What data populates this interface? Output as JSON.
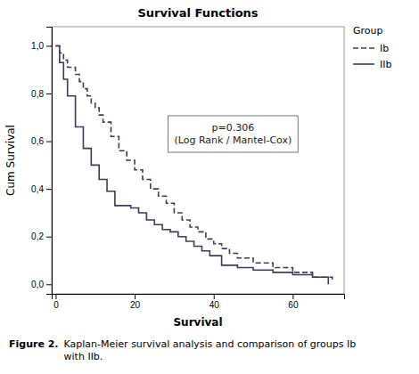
{
  "chart_data": {
    "type": "step",
    "title": "Survival Functions",
    "x_label": "Survival",
    "y_label": "Cum Survival",
    "legend_title": "Group",
    "legend": "right",
    "grid": false,
    "annotations": [
      {
        "text": "p=0.306\n(Log Rank / Mantel-Cox)"
      }
    ],
    "caption": [
      "Figure 2.",
      "Kaplan-Meier survival analysis and comparison of groups Ib\nwith IIb."
    ],
    "xlim": [
      -1,
      73
    ],
    "ylim": [
      -0.04,
      1.08
    ],
    "xticks": [
      0,
      20,
      40,
      60
    ],
    "yticks": [
      {
        "value": 0.0,
        "label": "0,0"
      },
      {
        "value": 0.2,
        "label": "0,2"
      },
      {
        "value": 0.4,
        "label": "0,4"
      },
      {
        "value": 0.6,
        "label": "0,6"
      },
      {
        "value": 0.8,
        "label": "0,8"
      },
      {
        "value": 1.0,
        "label": "1,0"
      }
    ],
    "series": [
      {
        "name": "Ib",
        "color": "#3c3c5a",
        "line_style": "dashed",
        "x": [
          0,
          1,
          2,
          3,
          4,
          5,
          6,
          7,
          8,
          9,
          10,
          11,
          12,
          14,
          16,
          18,
          20,
          22,
          24,
          26,
          28,
          30,
          32,
          34,
          36,
          38,
          40,
          42,
          44,
          46,
          50,
          55,
          60,
          65,
          70
        ],
        "values": [
          1.0,
          0.97,
          0.94,
          0.91,
          0.91,
          0.88,
          0.85,
          0.82,
          0.79,
          0.76,
          0.74,
          0.71,
          0.68,
          0.62,
          0.56,
          0.52,
          0.48,
          0.44,
          0.4,
          0.37,
          0.34,
          0.3,
          0.27,
          0.24,
          0.22,
          0.19,
          0.17,
          0.15,
          0.13,
          0.11,
          0.09,
          0.07,
          0.05,
          0.03,
          0.02
        ]
      },
      {
        "name": "IIb",
        "color": "#3c3c5a",
        "line_style": "solid",
        "x": [
          0,
          1,
          2,
          3,
          5,
          7,
          9,
          11,
          13,
          15,
          17,
          19,
          21,
          23,
          25,
          27,
          29,
          31,
          33,
          35,
          37,
          39,
          42,
          46,
          50,
          55,
          60,
          65,
          69
        ],
        "values": [
          1.0,
          0.93,
          0.86,
          0.79,
          0.66,
          0.57,
          0.5,
          0.44,
          0.39,
          0.33,
          0.33,
          0.32,
          0.3,
          0.27,
          0.25,
          0.23,
          0.22,
          0.2,
          0.18,
          0.16,
          0.14,
          0.12,
          0.08,
          0.07,
          0.06,
          0.05,
          0.04,
          0.03,
          0.0
        ]
      }
    ]
  }
}
